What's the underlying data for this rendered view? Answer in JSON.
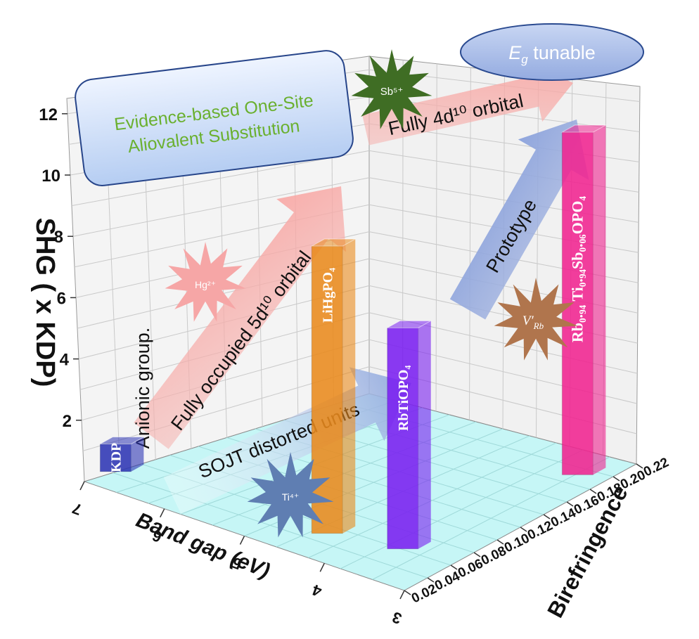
{
  "chart_data": {
    "type": "bar",
    "projection": "3d",
    "zlabel": "SHG ( x KDP)",
    "xlabel": "Band gap (eV)",
    "ylabel": "Birefringence",
    "z_ticks": [
      "2",
      "4",
      "6",
      "8",
      "10",
      "12"
    ],
    "x_ticks": [
      "7",
      "6",
      "5",
      "4",
      "3"
    ],
    "y_ticks": [
      "0.02",
      "0.04",
      "0.06",
      "0.08",
      "0.10",
      "0.12",
      "0.14",
      "0.16",
      "0.18",
      "0.20",
      "0.22"
    ],
    "zlim": [
      0,
      12.5
    ],
    "grid": true,
    "bars": [
      {
        "label": "KDP",
        "band_gap": 6.9,
        "birefringence": 0.04,
        "shg": 1,
        "color": "#2d35b4"
      },
      {
        "label": "LiHgPO₄",
        "band_gap": 4.4,
        "birefringence": 0.05,
        "shg": 10.4,
        "color": "#e98a1c"
      },
      {
        "label": "RbTiOPO₄",
        "band_gap": 3.6,
        "birefringence": 0.06,
        "shg": 8.0,
        "color": "#7a1ff0"
      },
      {
        "label": "Rb₀.₉₄ Ti₀.₉₄Sb₀.₀₆OPO₄",
        "band_gap": 3.3,
        "birefringence": 0.19,
        "shg": 12.4,
        "color": "#f0238f"
      }
    ],
    "annotations": {
      "strategy_box_line1": "Evidence-based One-Site",
      "strategy_box_line2": "Aliovalent Substitution",
      "tunable_label": "E",
      "tunable_sub": "g",
      "tunable_rest": " tunable",
      "arrow_sojt": "SOJT distorted units",
      "arrow_anionic": "Anionic group.",
      "arrow_5d": "Fully occupied 5d¹⁰ orbital",
      "arrow_4d": "Fully 4d¹⁰ orbital",
      "arrow_prototype": "Prototype",
      "star_hg": "Hg²⁺",
      "star_sb": "Sb⁵⁺",
      "star_ti": "Ti⁴⁺",
      "star_v": "V′",
      "star_v_sub": "Rb"
    }
  }
}
